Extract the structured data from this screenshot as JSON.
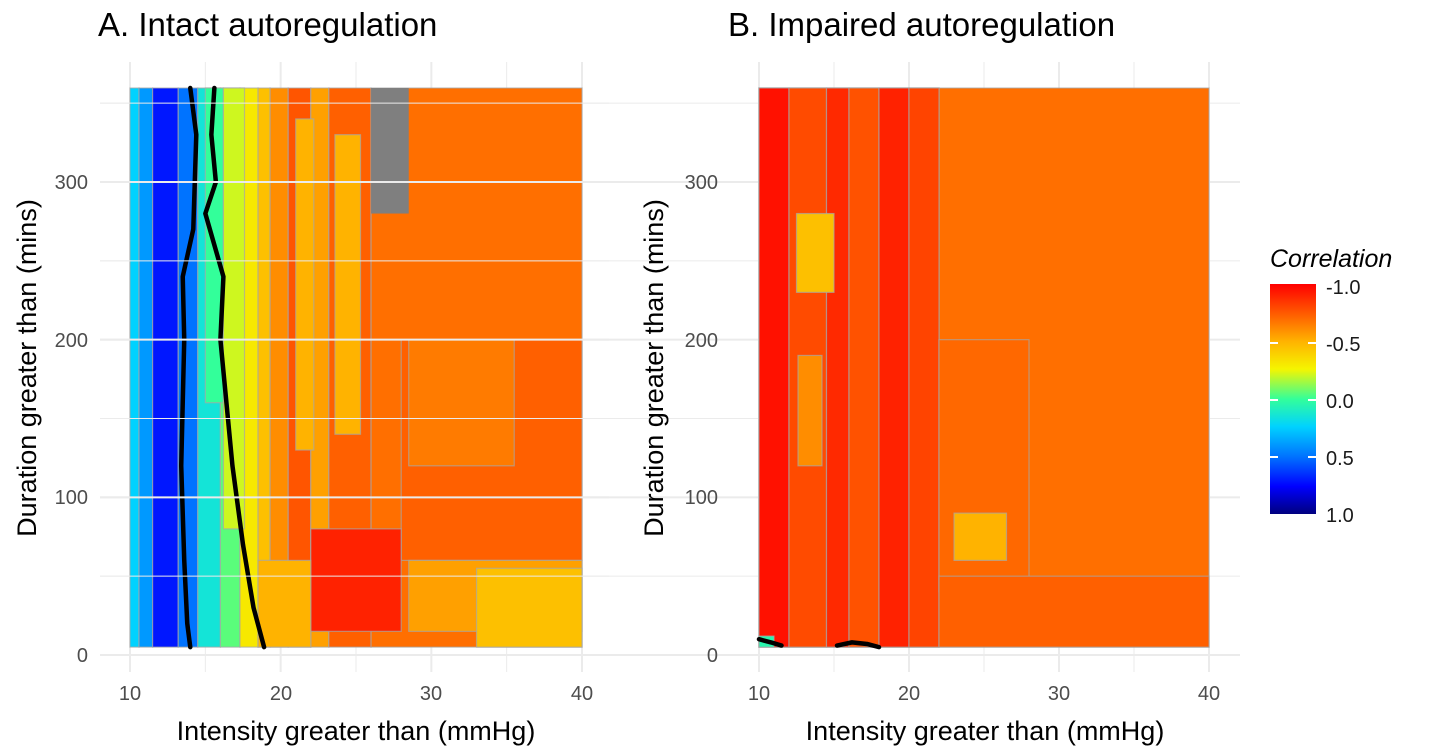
{
  "colors": {
    "scale": [
      "#00007f",
      "#0000ff",
      "#0073ff",
      "#00d2ff",
      "#33ff9a",
      "#f5f500",
      "#ffb300",
      "#ff5500",
      "#ff0000"
    ],
    "contour": "#a6a6a6",
    "threshold_contour": "#000000",
    "missing": "#7f7f7f",
    "grid": "#ebebeb"
  },
  "chart_data": [
    {
      "type": "heatmap",
      "title": "A. Intact autoregulation",
      "xlabel": "Intensity greater than (mmHg)",
      "ylabel": "Duration greater than (mins)",
      "xlim": [
        10,
        40
      ],
      "ylim": [
        5,
        360
      ],
      "x_ticks": [
        "10",
        "20",
        "30",
        "40"
      ],
      "y_ticks": [
        "0",
        "100",
        "200",
        "300"
      ],
      "grid": true,
      "missing_region": {
        "x": [
          26,
          28.5
        ],
        "y": [
          280,
          360
        ]
      },
      "regions": [
        {
          "x": [
            10,
            10.6
          ],
          "y": [
            5,
            360
          ],
          "corr": 0.25
        },
        {
          "x": [
            10.6,
            11.5
          ],
          "y": [
            5,
            360
          ],
          "corr": 0.4
        },
        {
          "x": [
            11.5,
            13.2
          ],
          "y": [
            5,
            360
          ],
          "corr": 0.7
        },
        {
          "x": [
            13.2,
            14.5
          ],
          "y": [
            5,
            360
          ],
          "corr": 0.5
        },
        {
          "x": [
            14.5,
            16
          ],
          "y": [
            5,
            360
          ],
          "corr": 0.15
        },
        {
          "x": [
            16,
            17.3
          ],
          "y": [
            5,
            360
          ],
          "corr": -0.05
        },
        {
          "x": [
            17.3,
            18.5
          ],
          "y": [
            5,
            360
          ],
          "corr": -0.3
        },
        {
          "x": [
            18.5,
            19.3
          ],
          "y": [
            5,
            360
          ],
          "corr": -0.45
        },
        {
          "x": [
            19.3,
            20.5
          ],
          "y": [
            5,
            360
          ],
          "corr": -0.6
        },
        {
          "x": [
            20.5,
            22
          ],
          "y": [
            5,
            360
          ],
          "corr": -0.75
        },
        {
          "x": [
            22,
            23.2
          ],
          "y": [
            5,
            360
          ],
          "corr": -0.55
        },
        {
          "x": [
            23.2,
            26
          ],
          "y": [
            5,
            360
          ],
          "corr": -0.72
        },
        {
          "x": [
            26,
            40
          ],
          "y": [
            5,
            360
          ],
          "corr": -0.68
        },
        {
          "x": [
            15,
            16.2
          ],
          "y": [
            160,
            360
          ],
          "corr": 0.0
        },
        {
          "x": [
            16.2,
            17.6
          ],
          "y": [
            80,
            360
          ],
          "corr": -0.2
        },
        {
          "x": [
            21,
            22.2
          ],
          "y": [
            130,
            340
          ],
          "corr": -0.5
        },
        {
          "x": [
            23.6,
            25.3
          ],
          "y": [
            140,
            330
          ],
          "corr": -0.5
        },
        {
          "x": [
            28,
            40
          ],
          "y": [
            60,
            200
          ],
          "corr": -0.72
        },
        {
          "x": [
            28.5,
            35.5
          ],
          "y": [
            120,
            200
          ],
          "corr": -0.65
        },
        {
          "x": [
            28.5,
            40
          ],
          "y": [
            15,
            60
          ],
          "corr": -0.55
        },
        {
          "x": [
            33,
            40
          ],
          "y": [
            5,
            55
          ],
          "corr": -0.45
        },
        {
          "x": [
            22,
            28
          ],
          "y": [
            15,
            80
          ],
          "corr": -0.9
        },
        {
          "x": [
            18.5,
            22
          ],
          "y": [
            5,
            60
          ],
          "corr": -0.5
        }
      ],
      "threshold_contours": [
        [
          [
            14,
            5
          ],
          [
            13.8,
            20
          ],
          [
            13.6,
            60
          ],
          [
            13.4,
            120
          ],
          [
            13.6,
            200
          ],
          [
            13.5,
            240
          ],
          [
            14.2,
            270
          ],
          [
            14.4,
            330
          ],
          [
            14.0,
            360
          ]
        ],
        [
          [
            15.6,
            360
          ],
          [
            15.4,
            330
          ],
          [
            15.7,
            300
          ],
          [
            15.0,
            280
          ],
          [
            16.2,
            240
          ],
          [
            16.0,
            200
          ],
          [
            16.8,
            120
          ],
          [
            17.5,
            70
          ],
          [
            18.2,
            30
          ],
          [
            18.9,
            5
          ]
        ]
      ]
    },
    {
      "type": "heatmap",
      "title": "B. Impaired autoregulation",
      "xlabel": "Intensity greater than (mmHg)",
      "ylabel": "Duration greater than (mins)",
      "xlim": [
        10,
        40
      ],
      "ylim": [
        5,
        360
      ],
      "x_ticks": [
        "10",
        "20",
        "30",
        "40"
      ],
      "y_ticks": [
        "0",
        "100",
        "200",
        "300"
      ],
      "grid": true,
      "regions": [
        {
          "x": [
            10,
            40
          ],
          "y": [
            5,
            360
          ],
          "corr": -0.68
        },
        {
          "x": [
            10,
            22
          ],
          "y": [
            5,
            360
          ],
          "corr": -0.82
        },
        {
          "x": [
            10,
            12
          ],
          "y": [
            5,
            360
          ],
          "corr": -0.95
        },
        {
          "x": [
            12,
            14.5
          ],
          "y": [
            5,
            360
          ],
          "corr": -0.78
        },
        {
          "x": [
            14.5,
            16
          ],
          "y": [
            5,
            360
          ],
          "corr": -0.88
        },
        {
          "x": [
            16,
            18
          ],
          "y": [
            5,
            360
          ],
          "corr": -0.76
        },
        {
          "x": [
            18,
            20
          ],
          "y": [
            5,
            360
          ],
          "corr": -0.9
        },
        {
          "x": [
            20,
            22
          ],
          "y": [
            5,
            360
          ],
          "corr": -0.8
        },
        {
          "x": [
            12.5,
            15
          ],
          "y": [
            230,
            280
          ],
          "corr": -0.45
        },
        {
          "x": [
            12.6,
            14.2
          ],
          "y": [
            120,
            190
          ],
          "corr": -0.6
        },
        {
          "x": [
            22,
            28
          ],
          "y": [
            40,
            200
          ],
          "corr": -0.7
        },
        {
          "x": [
            23,
            26.5
          ],
          "y": [
            60,
            90
          ],
          "corr": -0.5
        },
        {
          "x": [
            22,
            40
          ],
          "y": [
            5,
            50
          ],
          "corr": -0.72
        },
        {
          "x": [
            10,
            11
          ],
          "y": [
            5,
            12
          ],
          "corr": 0.05
        }
      ],
      "threshold_contours": [
        [
          [
            10,
            10
          ],
          [
            10.8,
            8
          ],
          [
            11.5,
            6
          ]
        ],
        [
          [
            15.2,
            6
          ],
          [
            16.2,
            8
          ],
          [
            17.2,
            7
          ],
          [
            18,
            5
          ]
        ]
      ]
    }
  ],
  "legend": {
    "title": "Correlation",
    "labels": [
      "-1.0",
      "-0.5",
      "0.0",
      "0.5",
      "1.0"
    ],
    "position": "right"
  }
}
